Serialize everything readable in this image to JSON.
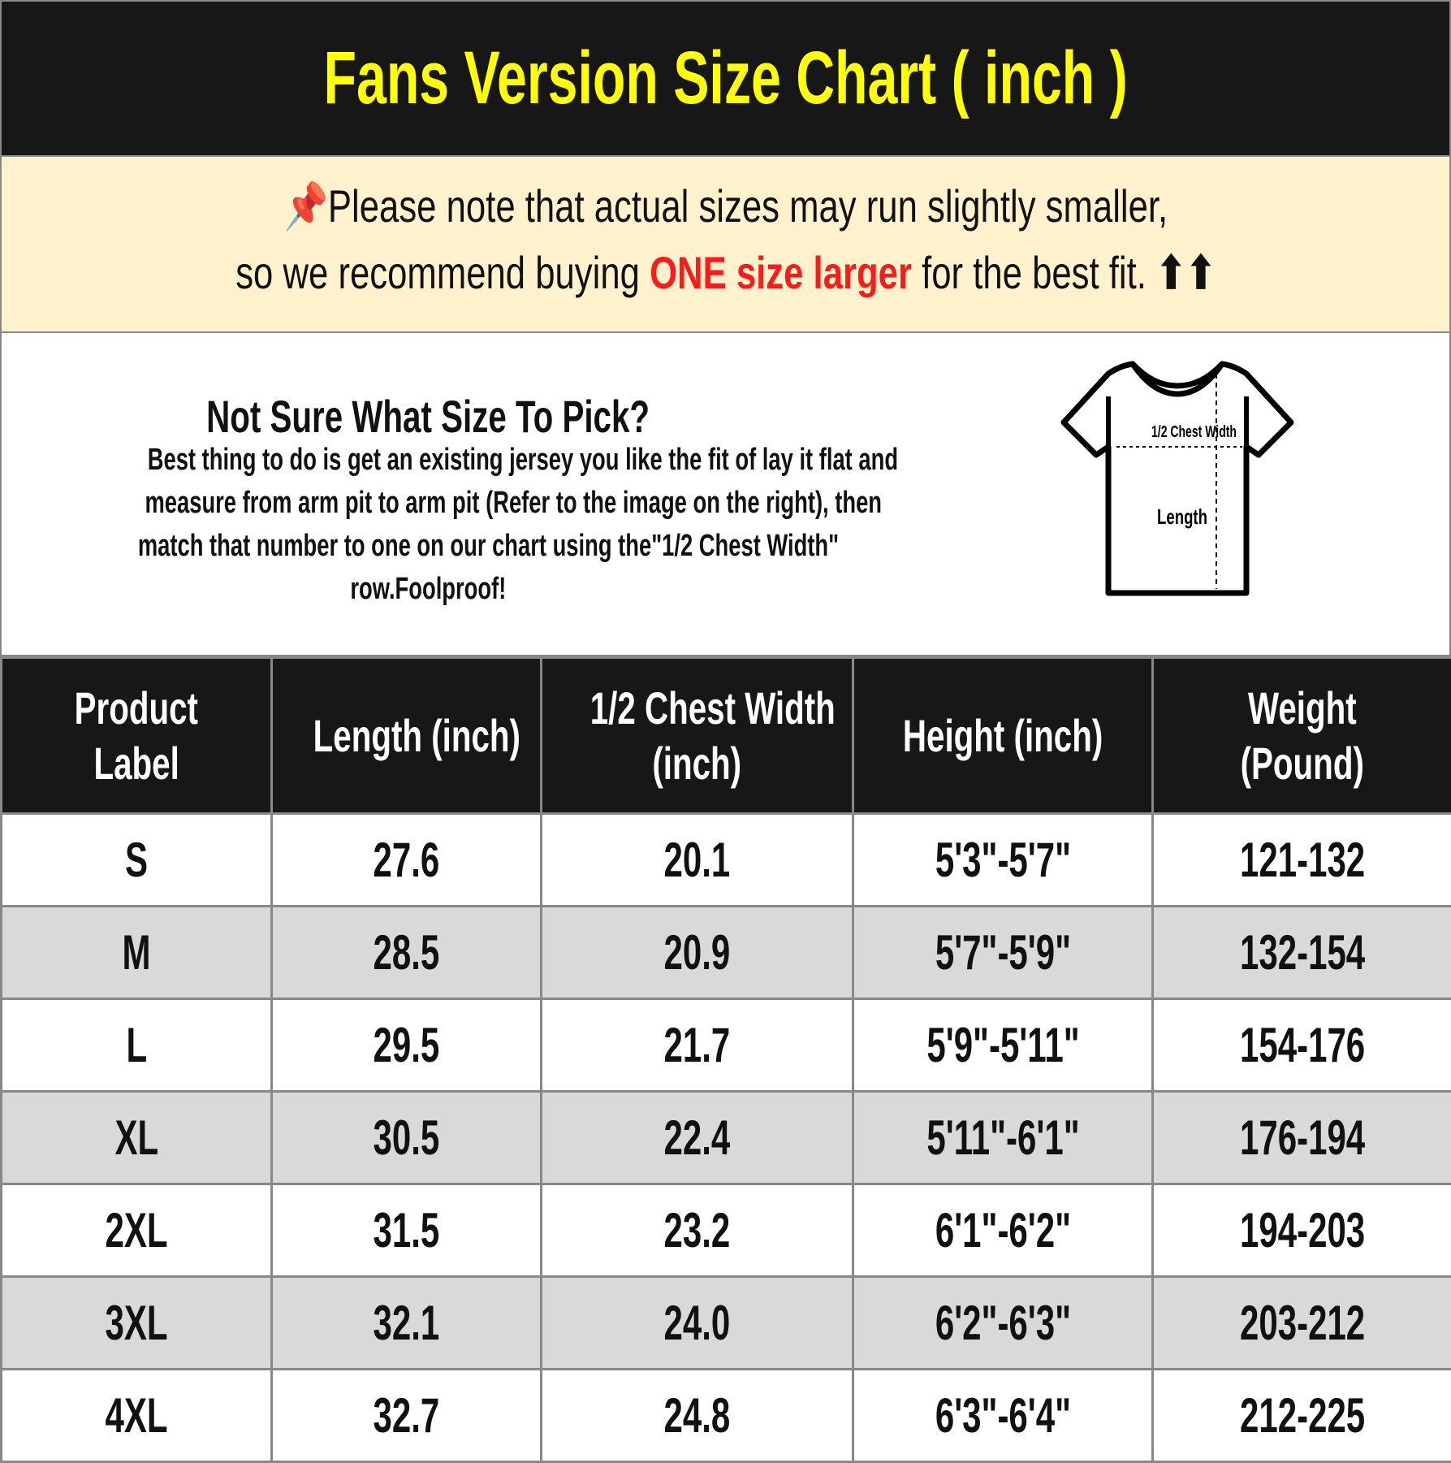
{
  "title": "Fans Version Size Chart ( inch )",
  "note": {
    "icon": "pushpin-icon",
    "line1": "Please note that actual sizes may run slightly smaller,",
    "line2_pre": "so we recommend buying ",
    "line2_highlight": "ONE size larger",
    "line2_post": " for the best fit. ",
    "arrows": "⬆⬆",
    "highlight_color": "#ff1a1a",
    "background": "#fff2cc"
  },
  "info": {
    "heading": "Not Sure What Size To Pick?",
    "lines": [
      "Best thing to do is get an existing jersey you like the fit of lay it flat and",
      "measure from arm pit to arm pit (Refer to the image on the right), then",
      "match that number to one on our chart using the\"1/2 Chest Width\"",
      "row.Foolproof!"
    ],
    "diagram": {
      "chest_label": "1/2 Chest Width",
      "length_label": "Length"
    }
  },
  "table": {
    "headers": [
      [
        "Product",
        "Label"
      ],
      [
        "Length (inch)"
      ],
      [
        "1/2 Chest Width",
        "(inch)"
      ],
      [
        "Height (inch)"
      ],
      [
        "Weight",
        "(Pound)"
      ]
    ],
    "rows": [
      [
        "S",
        "27.6",
        "20.1",
        "5'3\"-5'7\"",
        "121-132"
      ],
      [
        "M",
        "28.5",
        "20.9",
        "5'7\"-5'9\"",
        "132-154"
      ],
      [
        "L",
        "29.5",
        "21.7",
        "5'9\"-5'11\"",
        "154-176"
      ],
      [
        "XL",
        "30.5",
        "22.4",
        "5'11\"-6'1\"",
        "176-194"
      ],
      [
        "2XL",
        "31.5",
        "23.2",
        "6'1\"-6'2\"",
        "194-203"
      ],
      [
        "3XL",
        "32.1",
        "24.0",
        "6'2\"-6'3\"",
        "203-212"
      ],
      [
        "4XL",
        "32.7",
        "24.8",
        "6'3\"-6'4\"",
        "212-225"
      ]
    ]
  },
  "colors": {
    "title_bg": "#171717",
    "title_text": "#ffff00",
    "row_alt": "#d9d9d9"
  }
}
